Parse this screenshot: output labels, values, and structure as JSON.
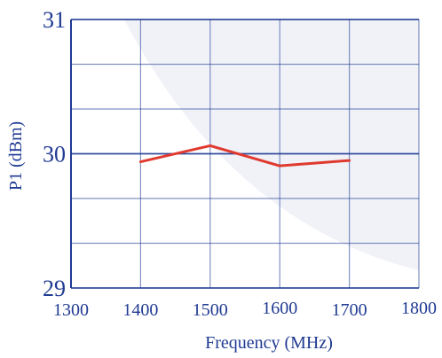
{
  "colors": {
    "background": "#ffffff",
    "plot_background": "#f0f2f8",
    "grid": "#1f3a93",
    "series": "#e03a2f",
    "text": "#1f3a93"
  },
  "chart_data": {
    "type": "line",
    "xlabel": "Frequency (MHz)",
    "ylabel": "P1 (dBm)",
    "xlim": [
      1300,
      1800
    ],
    "ylim": [
      29,
      31
    ],
    "x_ticks": [
      1300,
      1400,
      1500,
      1600,
      1700,
      1800
    ],
    "y_ticks": [
      29,
      30,
      31
    ],
    "grid": true,
    "series": [
      {
        "x": [
          1400,
          1500,
          1600,
          1700
        ],
        "values": [
          29.94,
          30.06,
          29.91,
          29.95
        ]
      }
    ]
  }
}
